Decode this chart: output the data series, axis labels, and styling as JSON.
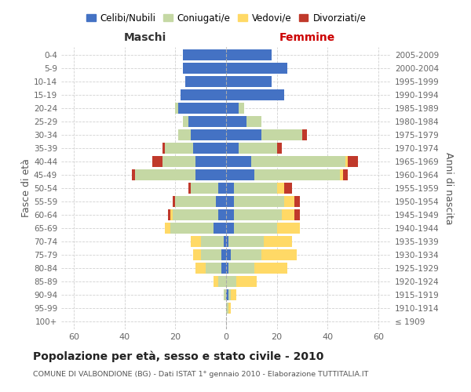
{
  "age_groups": [
    "100+",
    "95-99",
    "90-94",
    "85-89",
    "80-84",
    "75-79",
    "70-74",
    "65-69",
    "60-64",
    "55-59",
    "50-54",
    "45-49",
    "40-44",
    "35-39",
    "30-34",
    "25-29",
    "20-24",
    "15-19",
    "10-14",
    "5-9",
    "0-4"
  ],
  "birth_years": [
    "≤ 1909",
    "1910-1914",
    "1915-1919",
    "1920-1924",
    "1925-1929",
    "1930-1934",
    "1935-1939",
    "1940-1944",
    "1945-1949",
    "1950-1954",
    "1955-1959",
    "1960-1964",
    "1965-1969",
    "1970-1974",
    "1975-1979",
    "1980-1984",
    "1985-1989",
    "1990-1994",
    "1995-1999",
    "2000-2004",
    "2005-2009"
  ],
  "males_celibi": [
    0,
    0,
    0,
    0,
    2,
    2,
    1,
    5,
    3,
    4,
    3,
    12,
    12,
    13,
    14,
    15,
    19,
    18,
    16,
    17,
    17
  ],
  "males_coniugati": [
    0,
    0,
    1,
    3,
    6,
    8,
    9,
    17,
    18,
    16,
    11,
    24,
    13,
    11,
    5,
    2,
    1,
    0,
    0,
    0,
    0
  ],
  "males_vedovi": [
    0,
    0,
    0,
    2,
    4,
    3,
    4,
    2,
    1,
    0,
    0,
    0,
    0,
    0,
    0,
    0,
    0,
    0,
    0,
    0,
    0
  ],
  "males_divorziati": [
    0,
    0,
    0,
    0,
    0,
    0,
    0,
    0,
    1,
    1,
    1,
    1,
    4,
    1,
    0,
    0,
    0,
    0,
    0,
    0,
    0
  ],
  "females_nubili": [
    0,
    0,
    1,
    0,
    1,
    2,
    1,
    3,
    3,
    3,
    3,
    11,
    10,
    5,
    14,
    8,
    5,
    23,
    18,
    24,
    18
  ],
  "females_coniugate": [
    0,
    1,
    1,
    4,
    10,
    12,
    14,
    17,
    19,
    20,
    17,
    34,
    37,
    15,
    16,
    6,
    2,
    0,
    0,
    0,
    0
  ],
  "females_vedove": [
    0,
    1,
    2,
    8,
    13,
    14,
    11,
    9,
    5,
    4,
    3,
    1,
    1,
    0,
    0,
    0,
    0,
    0,
    0,
    0,
    0
  ],
  "females_divorziate": [
    0,
    0,
    0,
    0,
    0,
    0,
    0,
    0,
    2,
    2,
    3,
    2,
    4,
    2,
    2,
    0,
    0,
    0,
    0,
    0,
    0
  ],
  "color_celibi": "#4472c4",
  "color_coniugati": "#c5d8a4",
  "color_vedovi": "#ffd966",
  "color_divorziati": "#c0392b",
  "title": "Popolazione per età, sesso e stato civile - 2010",
  "subtitle": "COMUNE DI VALBONDIONE (BG) - Dati ISTAT 1° gennaio 2010 - Elaborazione TUTTITALIA.IT",
  "label_maschi": "Maschi",
  "label_femmine": "Femmine",
  "ylabel_left": "Fasce di età",
  "ylabel_right": "Anni di nascita",
  "legend_labels": [
    "Celibi/Nubili",
    "Coniugati/e",
    "Vedovi/e",
    "Divorziati/e"
  ],
  "xlim": 65
}
